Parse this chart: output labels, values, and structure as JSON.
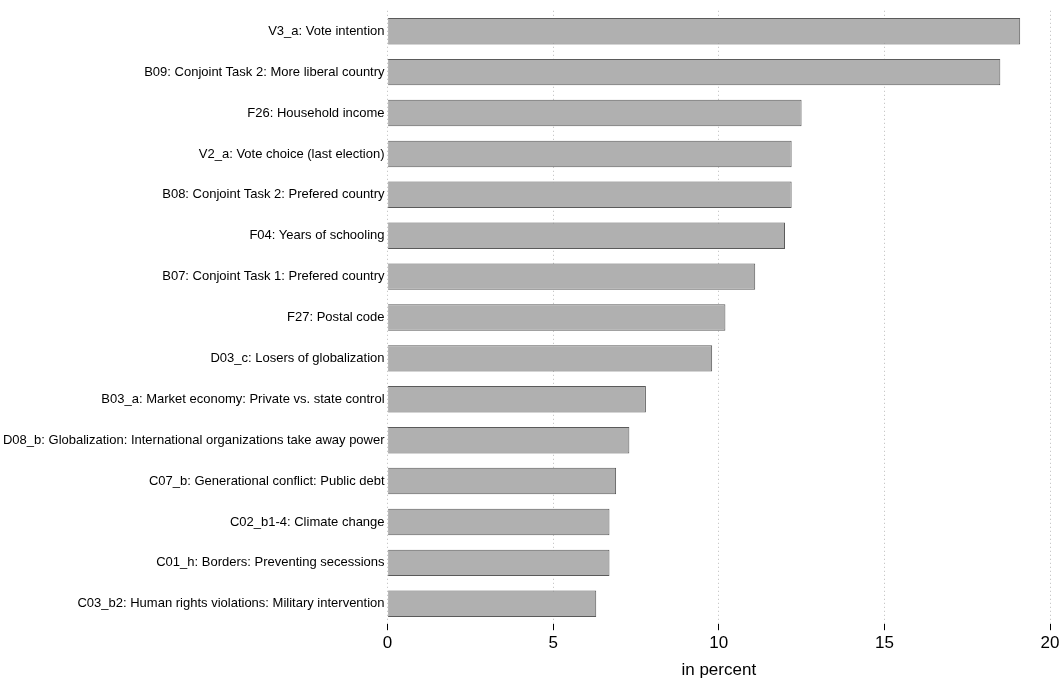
{
  "chart_data": {
    "type": "bar",
    "orientation": "horizontal",
    "xlabel": "in percent",
    "categories": [
      "V3_a: Vote intention",
      "B09: Conjoint Task 2: More liberal country",
      "F26: Household income",
      "V2_a: Vote choice (last election)",
      "B08: Conjoint Task 2: Prefered country",
      "F04: Years of schooling",
      "B07: Conjoint Task 1: Prefered country",
      "F27: Postal code",
      "D03_c: Losers of globalization",
      "B03_a: Market economy: Private vs. state control",
      "D08_b: Globalization: International organizations take away power",
      "C07_b: Generational conflict: Public debt",
      "C02_b1-4: Climate change",
      "C01_h: Borders: Preventing secessions",
      "C03_b2: Human rights violations: Military intervention"
    ],
    "values": [
      19.1,
      18.5,
      12.5,
      12.2,
      12.2,
      12.0,
      11.1,
      10.2,
      9.8,
      7.8,
      7.3,
      6.9,
      6.7,
      6.7,
      6.3
    ],
    "color": "#b0b0b0",
    "xlim": [
      0,
      20
    ],
    "xticks": [
      0,
      5,
      10,
      15,
      20
    ],
    "grid": "x",
    "legend": false
  }
}
